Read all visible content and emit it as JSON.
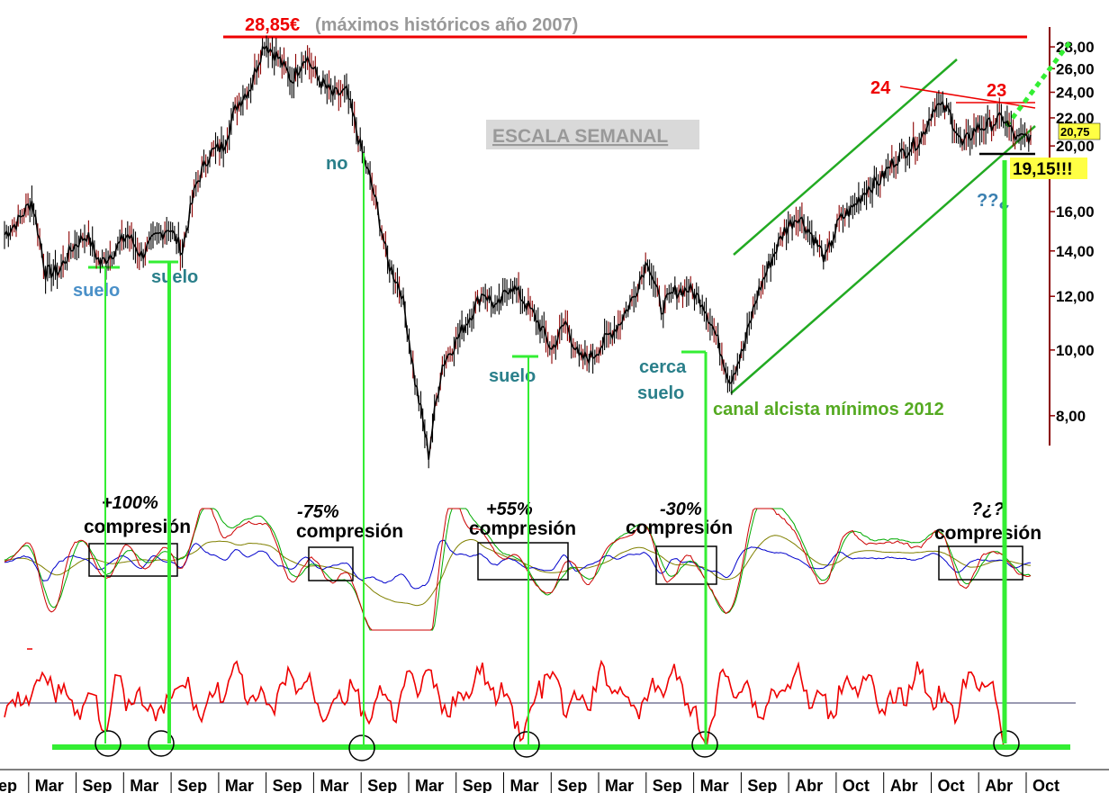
{
  "chart_data": [
    {
      "type": "candlestick",
      "title": "",
      "y_scale": "log",
      "ylim": [
        6.8,
        29.5
      ],
      "y_ticks": [
        "8,00",
        "10,00",
        "12,00",
        "14,00",
        "16,00",
        "20,00",
        "22,00",
        "24,00",
        "26,00",
        "28,00"
      ],
      "y_tick_values": [
        8,
        10,
        12,
        14,
        16,
        20,
        22,
        24,
        26,
        28
      ],
      "last_price_label": "20,75",
      "last_price": 20.75,
      "x_labels": [
        "Sep",
        "Mar",
        "Sep",
        "Mar",
        "Sep",
        "Mar",
        "Sep",
        "Mar",
        "Sep",
        "Mar",
        "Sep",
        "Mar",
        "Sep",
        "Mar",
        "Sep",
        "Mar",
        "Sep",
        "Abr",
        "Oct",
        "Abr",
        "Oct",
        "Abr",
        "Oct"
      ],
      "series": [
        {
          "values": [
            14.8,
            15.5,
            16.6,
            13.0,
            13.1,
            14.2,
            14.8,
            13.4,
            14.0,
            14.8,
            13.8,
            14.6,
            15.2,
            14.0,
            17.5,
            19.5,
            20.0,
            23.0,
            24.5,
            28.4,
            27.0,
            25.0,
            27.2,
            25.0,
            23.8,
            24.0,
            20.0,
            17.0,
            13.5,
            12.2,
            9.0,
            7.0,
            9.5,
            10.3,
            11.2,
            12.2,
            11.5,
            12.5,
            11.8,
            11.0,
            10.0,
            11.0,
            9.7,
            9.8,
            10.4,
            11.0,
            12.0,
            13.6,
            11.5,
            12.2,
            12.3,
            11.8,
            10.5,
            9.0,
            10.0,
            12.0,
            13.5,
            15.0,
            15.8,
            14.8,
            13.6,
            15.5,
            16.2,
            17.3,
            17.8,
            19.0,
            19.8,
            20.5,
            23.0,
            22.5,
            20.0,
            21.2,
            21.5,
            22.0,
            20.4,
            20.75
          ]
        }
      ],
      "annotations": {
        "max_value": "28,85€",
        "max_note": "(máximos históricos año 2007)",
        "scale_label": "ESCALA SEMANAL",
        "floor_1": "suelo",
        "floor_2": "suelo",
        "no_label": "no",
        "floor_3": "suelo",
        "near_floor_1": "cerca",
        "near_floor_2": "suelo",
        "channel_label": "canal alcista mínimos 2012",
        "level_24": "24",
        "level_23": "23",
        "support_label": "19,15!!!",
        "question_label": "??¿",
        "levels": [
          28.85,
          24,
          23,
          19.15
        ],
        "floor_values": [
          12.8,
          13.0,
          9.3,
          9.5
        ]
      }
    },
    {
      "type": "line",
      "title": "",
      "series": [
        {
          "color": "#cc0000"
        },
        {
          "color": "#00aa00"
        },
        {
          "color": "#0000cc"
        },
        {
          "color": "#808000"
        }
      ],
      "annotations": [
        {
          "change": "+100%",
          "label": "compresión"
        },
        {
          "change": "-75%",
          "label": "compresión"
        },
        {
          "change": "+55%",
          "label": "compresión"
        },
        {
          "change": "-30%",
          "label": "compresión"
        },
        {
          "change": "?¿?",
          "label": "compresión"
        }
      ]
    },
    {
      "type": "line",
      "title": "",
      "series": [
        {
          "color": "#ee0000"
        }
      ]
    }
  ],
  "colors": {
    "price": "#000000",
    "max_line": "#ee0000",
    "channel": "#22aa22",
    "signal": "#33ee33",
    "blue_label": "#3a7fb0",
    "teal_label": "#2a7f8a",
    "support_bg": "#ffff44"
  }
}
